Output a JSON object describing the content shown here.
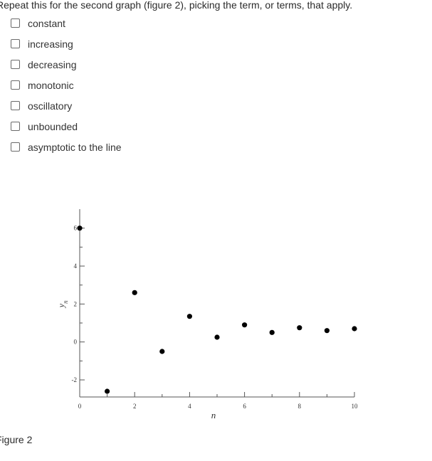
{
  "question": {
    "text": "Repeat this for the second graph (figure 2), picking the term, or terms, that apply."
  },
  "options": [
    {
      "label": "constant",
      "checked": false
    },
    {
      "label": "increasing",
      "checked": false
    },
    {
      "label": "decreasing",
      "checked": false
    },
    {
      "label": "monotonic",
      "checked": false
    },
    {
      "label": "oscillatory",
      "checked": false
    },
    {
      "label": "unbounded",
      "checked": false
    },
    {
      "label": "asymptotic to the line",
      "checked": false
    }
  ],
  "figure": {
    "caption": "Figure 2"
  },
  "chart_data": {
    "type": "scatter",
    "x": [
      0,
      1,
      2,
      3,
      4,
      5,
      6,
      7,
      8,
      9,
      10
    ],
    "y": [
      6,
      -2.6,
      2.6,
      -0.5,
      1.35,
      0.25,
      0.9,
      0.5,
      0.75,
      0.6,
      0.7
    ],
    "xlabel": "n",
    "ylabel": "y_n",
    "x_ticks": [
      "0",
      "2",
      "4",
      "6",
      "8",
      "10"
    ],
    "y_ticks": [
      "-2",
      "0",
      "2",
      "4",
      "6"
    ],
    "xlim": [
      0,
      10
    ],
    "ylim": [
      -2.9,
      7
    ],
    "grid": false,
    "colors": {
      "marker": "#000000",
      "axis": "#555555"
    }
  }
}
